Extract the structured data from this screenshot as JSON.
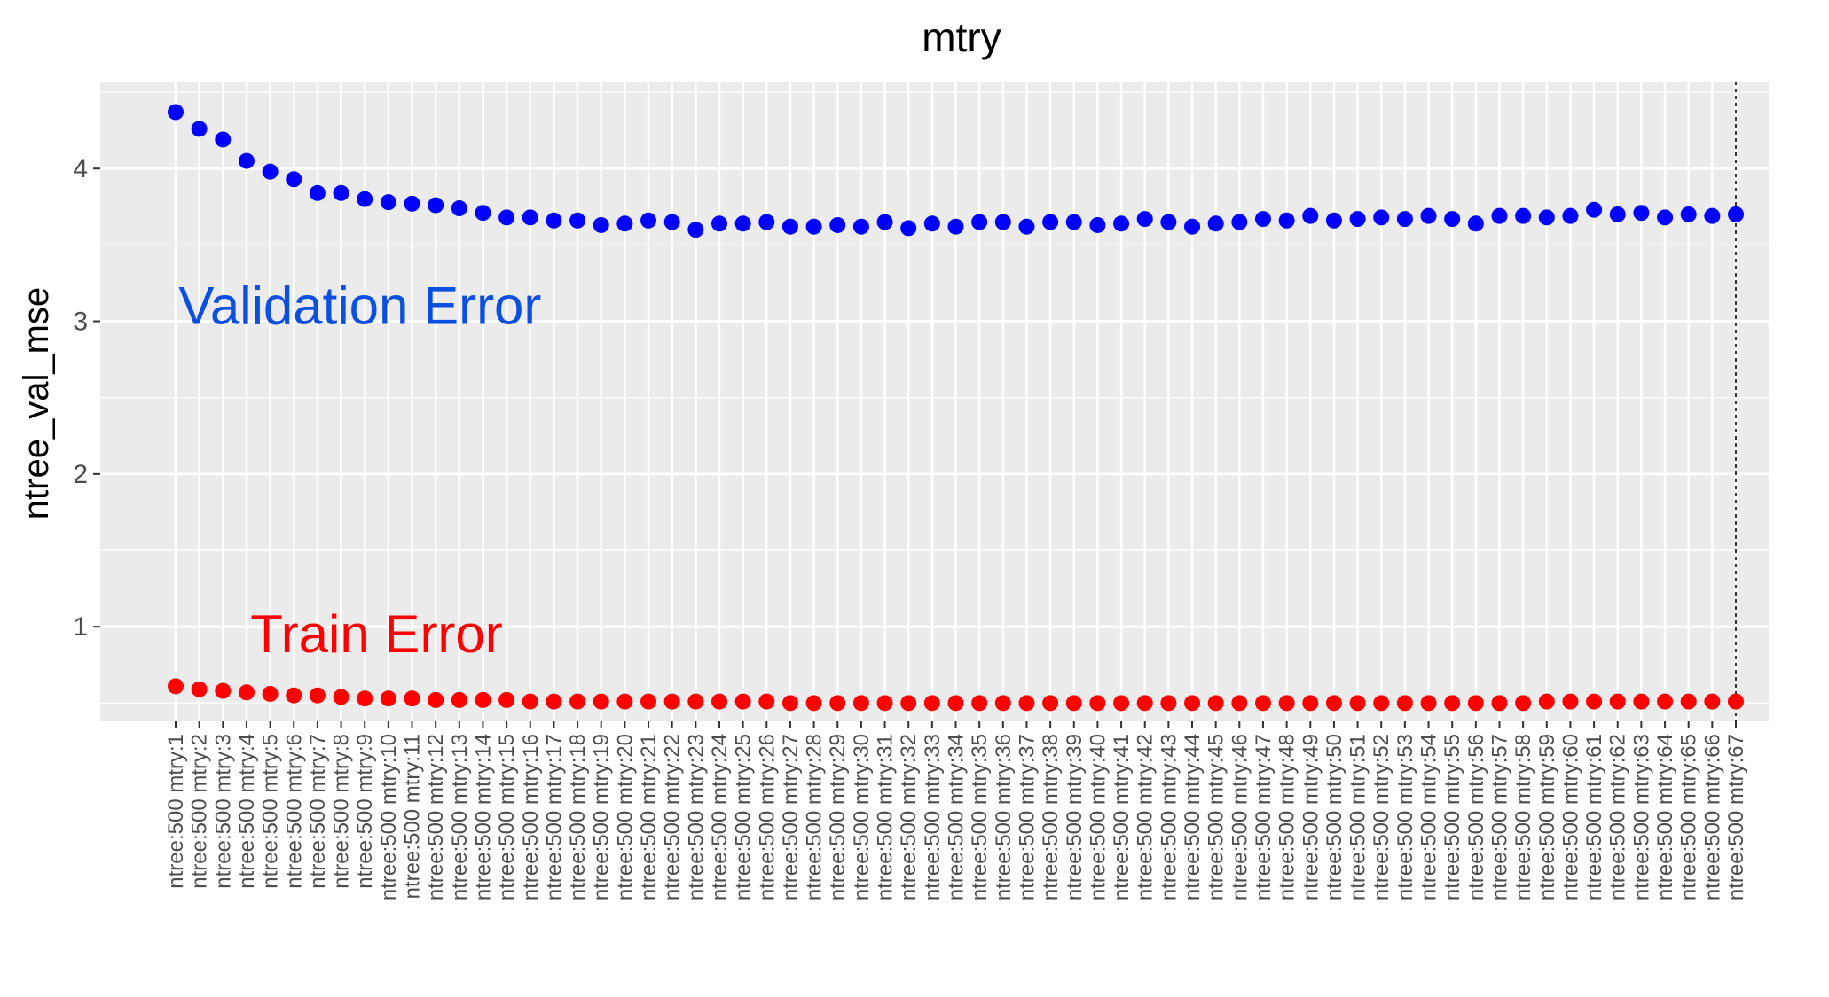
{
  "chart_data": {
    "type": "scatter",
    "title": "mtry",
    "xlabel": "",
    "ylabel": "ntree_val_mse",
    "ylim": [
      0.38,
      4.57
    ],
    "yticks": [
      1,
      2,
      3,
      4
    ],
    "grid": true,
    "reference_line": {
      "category_index": 66,
      "style": "dashed",
      "color": "#000000"
    },
    "categories": [
      "ntree:500 mtry:1",
      "ntree:500 mtry:2",
      "ntree:500 mtry:3",
      "ntree:500 mtry:4",
      "ntree:500 mtry:5",
      "ntree:500 mtry:6",
      "ntree:500 mtry:7",
      "ntree:500 mtry:8",
      "ntree:500 mtry:9",
      "ntree:500 mtry:10",
      "ntree:500 mtry:11",
      "ntree:500 mtry:12",
      "ntree:500 mtry:13",
      "ntree:500 mtry:14",
      "ntree:500 mtry:15",
      "ntree:500 mtry:16",
      "ntree:500 mtry:17",
      "ntree:500 mtry:18",
      "ntree:500 mtry:19",
      "ntree:500 mtry:20",
      "ntree:500 mtry:21",
      "ntree:500 mtry:22",
      "ntree:500 mtry:23",
      "ntree:500 mtry:24",
      "ntree:500 mtry:25",
      "ntree:500 mtry:26",
      "ntree:500 mtry:27",
      "ntree:500 mtry:28",
      "ntree:500 mtry:29",
      "ntree:500 mtry:30",
      "ntree:500 mtry:31",
      "ntree:500 mtry:32",
      "ntree:500 mtry:33",
      "ntree:500 mtry:34",
      "ntree:500 mtry:35",
      "ntree:500 mtry:36",
      "ntree:500 mtry:37",
      "ntree:500 mtry:38",
      "ntree:500 mtry:39",
      "ntree:500 mtry:40",
      "ntree:500 mtry:41",
      "ntree:500 mtry:42",
      "ntree:500 mtry:43",
      "ntree:500 mtry:44",
      "ntree:500 mtry:45",
      "ntree:500 mtry:46",
      "ntree:500 mtry:47",
      "ntree:500 mtry:48",
      "ntree:500 mtry:49",
      "ntree:500 mtry:50",
      "ntree:500 mtry:51",
      "ntree:500 mtry:52",
      "ntree:500 mtry:53",
      "ntree:500 mtry:54",
      "ntree:500 mtry:55",
      "ntree:500 mtry:56",
      "ntree:500 mtry:57",
      "ntree:500 mtry:58",
      "ntree:500 mtry:59",
      "ntree:500 mtry:60",
      "ntree:500 mtry:61",
      "ntree:500 mtry:62",
      "ntree:500 mtry:63",
      "ntree:500 mtry:64",
      "ntree:500 mtry:65",
      "ntree:500 mtry:66",
      "ntree:500 mtry:67"
    ],
    "series": [
      {
        "color": "#0000ff",
        "values": [
          4.37,
          4.26,
          4.19,
          4.05,
          3.98,
          3.93,
          3.84,
          3.84,
          3.8,
          3.78,
          3.77,
          3.76,
          3.74,
          3.71,
          3.68,
          3.68,
          3.66,
          3.66,
          3.63,
          3.64,
          3.66,
          3.65,
          3.6,
          3.64,
          3.64,
          3.65,
          3.62,
          3.62,
          3.63,
          3.62,
          3.65,
          3.61,
          3.64,
          3.62,
          3.65,
          3.65,
          3.62,
          3.65,
          3.65,
          3.63,
          3.64,
          3.67,
          3.65,
          3.62,
          3.64,
          3.65,
          3.67,
          3.66,
          3.69,
          3.66,
          3.67,
          3.68,
          3.67,
          3.69,
          3.67,
          3.64,
          3.69,
          3.69,
          3.68,
          3.69,
          3.73,
          3.7,
          3.71,
          3.68,
          3.7,
          3.69,
          3.7
        ]
      },
      {
        "color": "#ff0000",
        "values": [
          0.61,
          0.59,
          0.58,
          0.57,
          0.56,
          0.55,
          0.55,
          0.54,
          0.53,
          0.53,
          0.53,
          0.52,
          0.52,
          0.52,
          0.52,
          0.51,
          0.51,
          0.51,
          0.51,
          0.51,
          0.51,
          0.51,
          0.51,
          0.51,
          0.51,
          0.51,
          0.5,
          0.5,
          0.5,
          0.5,
          0.5,
          0.5,
          0.5,
          0.5,
          0.5,
          0.5,
          0.5,
          0.5,
          0.5,
          0.5,
          0.5,
          0.5,
          0.5,
          0.5,
          0.5,
          0.5,
          0.5,
          0.5,
          0.5,
          0.5,
          0.5,
          0.5,
          0.5,
          0.5,
          0.5,
          0.5,
          0.5,
          0.5,
          0.51,
          0.51,
          0.51,
          0.51,
          0.51,
          0.51,
          0.51,
          0.51,
          0.51
        ]
      }
    ],
    "annotations": [
      {
        "text": "Validation Error",
        "color": "#0a4fe0",
        "x_category": 7.8,
        "y": 3.1
      },
      {
        "text": "Train Error",
        "color": "#ff0000",
        "x_category": 8.5,
        "y": 0.95
      }
    ]
  }
}
